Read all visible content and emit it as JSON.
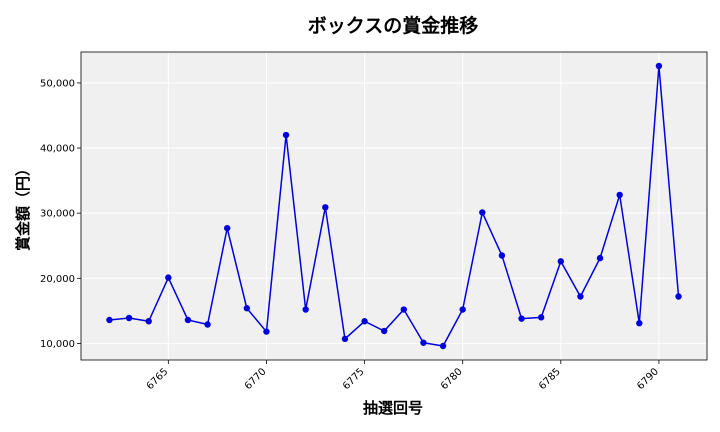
{
  "chart_data": {
    "type": "line",
    "title": "ボックスの賞金推移",
    "xlabel": "抽選回号",
    "ylabel": "賞金額（円）",
    "x": [
      6762,
      6763,
      6764,
      6765,
      6766,
      6767,
      6768,
      6769,
      6770,
      6771,
      6772,
      6773,
      6774,
      6775,
      6776,
      6777,
      6778,
      6779,
      6780,
      6781,
      6782,
      6783,
      6784,
      6785,
      6786,
      6787,
      6788,
      6789,
      6790,
      6791
    ],
    "series": [
      {
        "values": [
          13600,
          13900,
          13400,
          20100,
          13600,
          12900,
          27700,
          15400,
          11800,
          42000,
          15200,
          30900,
          10700,
          13400,
          11900,
          15200,
          10100,
          9600,
          15200,
          30100,
          23500,
          13800,
          14000,
          22600,
          17200,
          23100,
          32800,
          13100,
          52600,
          17200
        ]
      }
    ],
    "xticks": [
      6765,
      6770,
      6775,
      6780,
      6785,
      6790
    ],
    "yticks": [
      10000,
      20000,
      30000,
      40000,
      50000
    ],
    "ytick_labels": [
      "10,000",
      "20,000",
      "30,000",
      "40,000",
      "50,000"
    ],
    "xlim": [
      6760.55,
      6792.45
    ],
    "ylim": [
      7450,
      54750
    ],
    "grid": true,
    "colors": {
      "line": "#0000dd",
      "marker": "#0000dd",
      "plot_bg": "#f0f0f0",
      "grid": "#ffffff"
    }
  }
}
